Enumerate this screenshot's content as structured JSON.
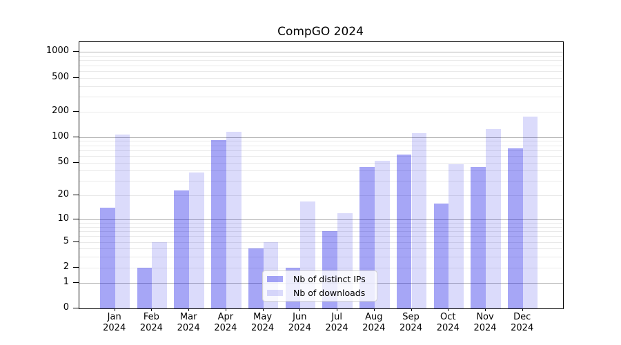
{
  "title": "CompGO 2024",
  "legend": {
    "items": [
      {
        "label": "Nb of distinct IPs"
      },
      {
        "label": "Nb of downloads"
      }
    ]
  },
  "colors": {
    "distinct_ips_bar": "rgba(0,0,230,0.35)",
    "downloads_bar": "rgba(0,0,230,0.14)",
    "major_grid": "#b3b3b3",
    "minor_grid": "#e9e9e9"
  },
  "chart_data": {
    "type": "bar",
    "title": "CompGO 2024",
    "categories": [
      "Jan 2024",
      "Feb 2024",
      "Mar 2024",
      "Apr 2024",
      "May 2024",
      "Jun 2024",
      "Jul 2024",
      "Aug 2024",
      "Sep 2024",
      "Oct 2024",
      "Nov 2024",
      "Dec 2024"
    ],
    "series": [
      {
        "name": "Nb of distinct IPs",
        "values": [
          14,
          2,
          23,
          92,
          4,
          2,
          7,
          44,
          62,
          16,
          44,
          74
        ]
      },
      {
        "name": "Nb of downloads",
        "values": [
          108,
          5,
          38,
          115,
          5,
          17,
          12,
          52,
          112,
          48,
          125,
          173
        ]
      }
    ],
    "xlabel": "",
    "ylabel": "",
    "yscale": "log1p",
    "ylim": [
      0,
      1305
    ],
    "yticks": [
      0,
      1,
      2,
      5,
      10,
      20,
      50,
      100,
      200,
      500,
      1000
    ],
    "yticks_minor": [
      3,
      4,
      6,
      7,
      8,
      9,
      30,
      40,
      60,
      70,
      80,
      90,
      300,
      400,
      600,
      700,
      800,
      900
    ],
    "grid": true,
    "legend_position": "lower center (inside axes)"
  }
}
